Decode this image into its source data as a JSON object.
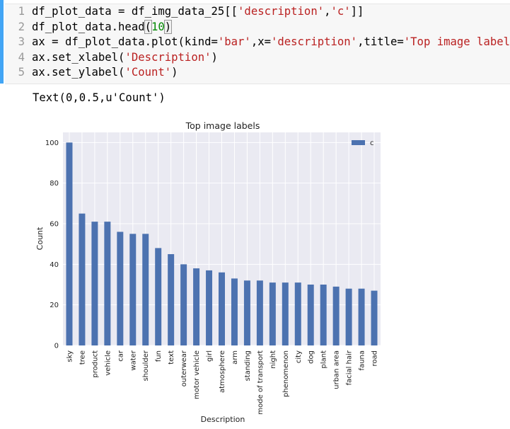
{
  "cell": {
    "line_numbers": [
      "1",
      "2",
      "3",
      "4",
      "5"
    ],
    "lines": [
      [
        {
          "t": "df_plot_data = df_img_data_25[[",
          "c": ""
        },
        {
          "t": "'description'",
          "c": "str"
        },
        {
          "t": ",",
          "c": ""
        },
        {
          "t": "'c'",
          "c": "str"
        },
        {
          "t": "]]",
          "c": ""
        }
      ],
      [
        {
          "t": "df_plot_data.head",
          "c": ""
        },
        {
          "t": "(",
          "c": "hl"
        },
        {
          "t": "10",
          "c": "num"
        },
        {
          "t": ")",
          "c": "hl"
        }
      ],
      [
        {
          "t": "ax = df_plot_data.plot(kind=",
          "c": ""
        },
        {
          "t": "'bar'",
          "c": "str"
        },
        {
          "t": ",x=",
          "c": ""
        },
        {
          "t": "'description'",
          "c": "str"
        },
        {
          "t": ",title=",
          "c": ""
        },
        {
          "t": "'Top image labels'",
          "c": "str"
        },
        {
          "t": ")",
          "c": ""
        }
      ],
      [
        {
          "t": "ax.set_xlabel(",
          "c": ""
        },
        {
          "t": "'Description'",
          "c": "str"
        },
        {
          "t": ")",
          "c": ""
        }
      ],
      [
        {
          "t": "ax.set_ylabel(",
          "c": ""
        },
        {
          "t": "'Count'",
          "c": "str"
        },
        {
          "t": ")",
          "c": ""
        }
      ]
    ]
  },
  "output": {
    "text": "Text(0,0.5,u'Count')"
  },
  "colors": {
    "bar": "#4c72b0",
    "plot_bg": "#eaeaf2",
    "grid": "#ffffff",
    "string": "#ba2121",
    "number": "#008800",
    "cell_bar": "#42a5f5"
  },
  "chart_data": {
    "type": "bar",
    "title": "Top image labels",
    "xlabel": "Description",
    "ylabel": "Count",
    "ylim": [
      0,
      105
    ],
    "yticks": [
      0,
      20,
      40,
      60,
      80,
      100
    ],
    "grid": true,
    "legend_position": "top-right",
    "categories": [
      "sky",
      "tree",
      "product",
      "vehicle",
      "car",
      "water",
      "shoulder",
      "fun",
      "text",
      "outerwear",
      "motor vehicle",
      "girl",
      "atmosphere",
      "arm",
      "standing",
      "mode of transport",
      "night",
      "phenomenon",
      "city",
      "dog",
      "plant",
      "urban area",
      "facial hair",
      "fauna",
      "road"
    ],
    "series": [
      {
        "name": "c",
        "values": [
          100,
          65,
          61,
          61,
          56,
          55,
          55,
          48,
          45,
          40,
          38,
          37,
          36,
          33,
          32,
          32,
          31,
          31,
          31,
          30,
          30,
          29,
          28,
          28,
          27
        ]
      }
    ]
  }
}
